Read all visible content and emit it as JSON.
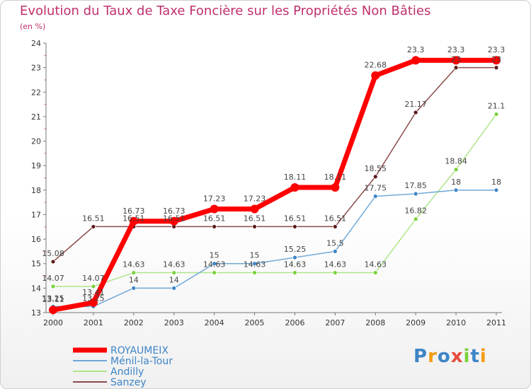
{
  "chart_data": {
    "type": "line",
    "title": "Evolution du Taux de Taxe Foncière sur les Propriétés Non Bâties",
    "ylabel": "(en %)",
    "xlabel": "",
    "categories": [
      "2000",
      "2001",
      "2002",
      "2003",
      "2004",
      "2005",
      "2006",
      "2007",
      "2008",
      "2009",
      "2010",
      "2011"
    ],
    "ylim": [
      13,
      24
    ],
    "yticks": [
      "13",
      "14",
      "15",
      "16",
      "17",
      "18",
      "19",
      "20",
      "21",
      "22",
      "23",
      "24"
    ],
    "grid": false,
    "legend_position": "bottom-left",
    "series": [
      {
        "name": "ROYAUMEIX",
        "color": "#ff0000",
        "point_color": "#ff0000",
        "emphasis": true,
        "values": [
          13.11,
          13.41,
          16.73,
          16.73,
          17.23,
          17.23,
          18.11,
          18.11,
          22.68,
          23.3,
          23.3,
          23.3
        ],
        "labels": [
          "13.11",
          "13.41",
          "16.73",
          "16.73",
          "17.23",
          "17.23",
          "18.11",
          "18.11",
          "22.68",
          "23.3",
          "23.3",
          "23.3"
        ]
      },
      {
        "name": "Ménil-la-Tour",
        "color": "#6fa8d8",
        "point_color": "#3d85c6",
        "values": [
          13.25,
          13.25,
          14,
          14,
          15,
          15,
          15.25,
          15.5,
          17.75,
          17.85,
          18,
          18
        ],
        "labels": [
          "13.25",
          "13.25",
          "14",
          "14",
          "15",
          "15",
          "15.25",
          "15.5",
          "17.75",
          "17.85",
          "18",
          "18"
        ]
      },
      {
        "name": "Andilly",
        "color": "#aee58a",
        "point_color": "#7ad13a",
        "values": [
          14.07,
          14.07,
          14.63,
          14.63,
          14.63,
          14.63,
          14.63,
          14.63,
          14.63,
          16.82,
          18.84,
          21.1
        ],
        "labels": [
          "14.07",
          "14.07",
          "14.63",
          "14.63",
          "14.63",
          "14.63",
          "14.63",
          "14.63",
          "14.63",
          "16.82",
          "18.84",
          "21.1"
        ]
      },
      {
        "name": "Sanzey",
        "color": "#8a4a4a",
        "point_color": "#5c1a1a",
        "values": [
          15.08,
          16.51,
          16.51,
          16.51,
          16.51,
          16.51,
          16.51,
          16.51,
          18.55,
          21.17,
          23,
          23
        ],
        "labels": [
          "15.08",
          "16.51",
          "16.51",
          "16.51",
          "16.51",
          "16.51",
          "16.51",
          "16.51",
          "18.55",
          "21.17",
          "23",
          "23"
        ]
      }
    ]
  },
  "logo": {
    "text": "Proxiti",
    "letter_colors": [
      "#3d85c6",
      "#f39c12",
      "#3d85c6",
      "#e74c3c",
      "#7ad13a",
      "#3d85c6",
      "#f39c12"
    ]
  }
}
